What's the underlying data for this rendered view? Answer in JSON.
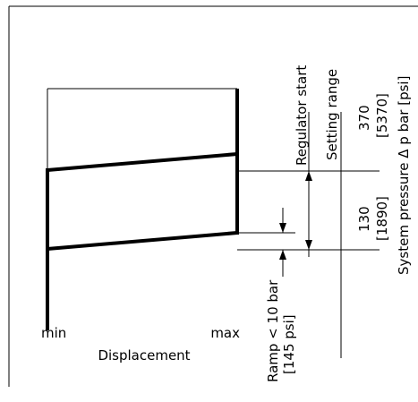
{
  "diagram": {
    "x_axis": {
      "min_label": "min",
      "max_label": "max",
      "title": "Displacement"
    },
    "ramp": {
      "label": "Ramp < 10 bar",
      "label_psi": "[145 psi]"
    },
    "columns": {
      "regulator_start": "Regulator start",
      "setting_range": "Setting range",
      "upper_value_bar": "370",
      "upper_value_psi": "[5370]",
      "lower_value_bar": "130",
      "lower_value_psi": "[1890]",
      "system_pressure": "System pressure Δ p bar [psi]"
    }
  }
}
